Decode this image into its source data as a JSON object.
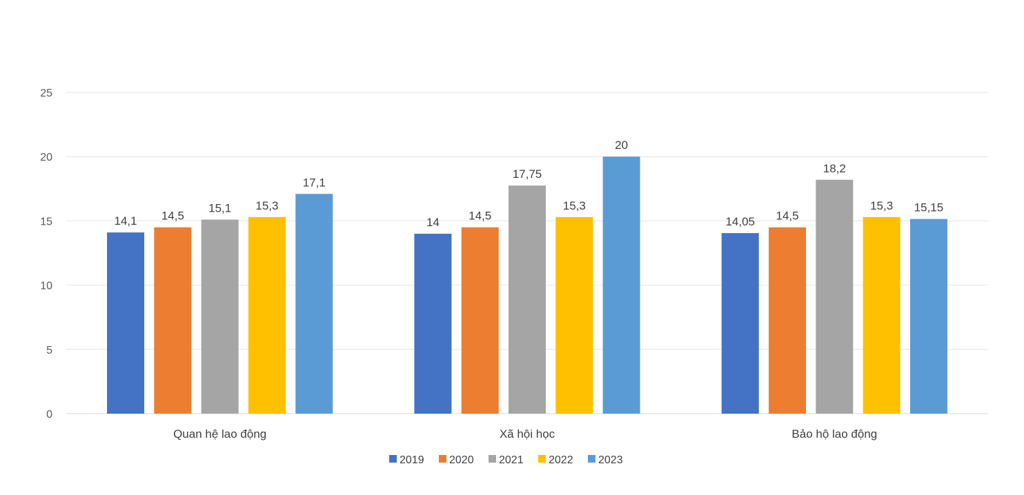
{
  "chart_data": {
    "type": "bar",
    "title": "",
    "xlabel": "",
    "ylabel": "",
    "ylim": [
      0,
      25
    ],
    "yticks": [
      "0",
      "5",
      "10",
      "15",
      "20",
      "25"
    ],
    "grid": true,
    "legend_position": "bottom",
    "categories": [
      "Quan hệ lao động",
      "Xã hội học",
      "Bảo hộ lao động"
    ],
    "series": [
      {
        "name": "2019",
        "color": "#4472C4",
        "values": [
          14.1,
          14,
          14.05
        ],
        "labels": [
          "14,1",
          "14",
          "14,05"
        ]
      },
      {
        "name": "2020",
        "color": "#ED7D31",
        "values": [
          14.5,
          14.5,
          14.5
        ],
        "labels": [
          "14,5",
          "14,5",
          "14,5"
        ]
      },
      {
        "name": "2021",
        "color": "#A5A5A5",
        "values": [
          15.1,
          17.75,
          18.2
        ],
        "labels": [
          "15,1",
          "17,75",
          "18,2"
        ]
      },
      {
        "name": "2022",
        "color": "#FFC000",
        "values": [
          15.3,
          15.3,
          15.3
        ],
        "labels": [
          "15,3",
          "15,3",
          "15,3"
        ]
      },
      {
        "name": "2023",
        "color": "#5B9BD5",
        "values": [
          17.1,
          20,
          15.15
        ],
        "labels": [
          "17,1",
          "20",
          "15,15"
        ]
      }
    ]
  }
}
